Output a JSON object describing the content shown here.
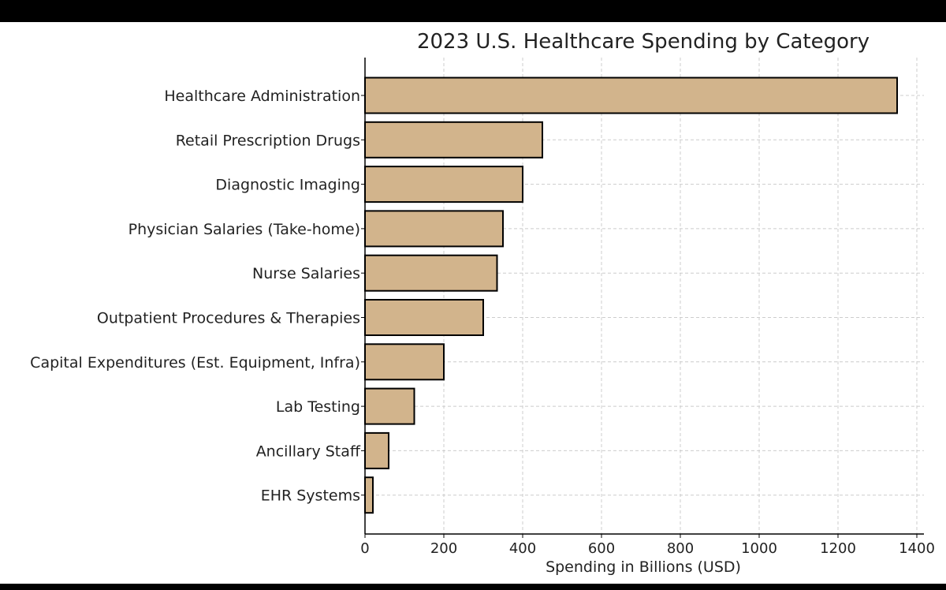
{
  "chart_data": {
    "type": "bar",
    "orientation": "horizontal",
    "title": "2023 U.S. Healthcare Spending by Category",
    "xlabel": "Spending in Billions (USD)",
    "ylabel": "",
    "xlim": [
      0,
      1400
    ],
    "xticks": [
      0,
      200,
      400,
      600,
      800,
      1000,
      1200,
      1400
    ],
    "grid": true,
    "bar_color": "#D2B48C",
    "edge_color": "#000000",
    "grid_color": "#cccccc",
    "categories": [
      "Healthcare Administration",
      "Retail Prescription Drugs",
      "Diagnostic Imaging",
      "Physician Salaries (Take-home)",
      "Nurse Salaries",
      "Outpatient Procedures & Therapies",
      "Capital Expenditures (Est. Equipment, Infra)",
      "Lab Testing",
      "Ancillary Staff",
      "EHR Systems"
    ],
    "values": [
      1350,
      450,
      400,
      350,
      335,
      300,
      200,
      125,
      60,
      20
    ]
  }
}
